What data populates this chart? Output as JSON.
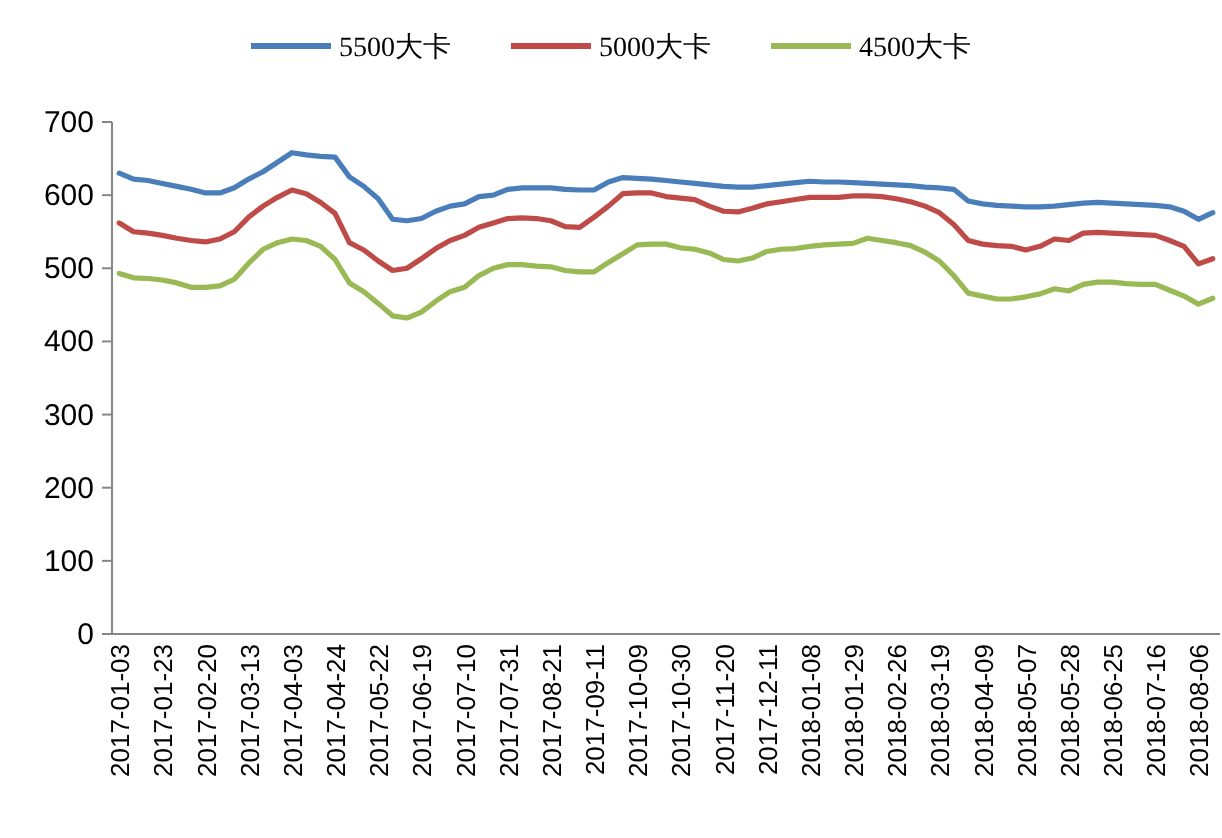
{
  "chart_data": {
    "type": "line",
    "categories": [
      "2017-01-03",
      null,
      null,
      "2017-01-23",
      null,
      null,
      "2017-02-20",
      null,
      null,
      "2017-03-13",
      null,
      null,
      "2017-04-03",
      null,
      null,
      "2017-04-24",
      null,
      null,
      "2017-05-22",
      null,
      null,
      "2017-06-19",
      null,
      null,
      "2017-07-10",
      null,
      null,
      "2017-07-31",
      null,
      null,
      "2017-08-21",
      null,
      null,
      "2017-09-11",
      null,
      null,
      "2017-10-09",
      null,
      null,
      "2017-10-30",
      null,
      null,
      "2017-11-20",
      null,
      null,
      "2017-12-11",
      null,
      null,
      "2018-01-08",
      null,
      null,
      "2018-01-29",
      null,
      null,
      "2018-02-26",
      null,
      null,
      "2018-03-19",
      null,
      null,
      "2018-04-09",
      null,
      null,
      "2018-05-07",
      null,
      null,
      "2018-05-28",
      null,
      null,
      "2018-06-25",
      null,
      null,
      "2018-07-16",
      null,
      null,
      "2018-08-06",
      null
    ],
    "series": [
      {
        "name": "5500大卡",
        "color": "#4a7ebb",
        "values": [
          630,
          622,
          620,
          616,
          612,
          608,
          603,
          603,
          610,
          622,
          632,
          645,
          658,
          655,
          653,
          652,
          625,
          612,
          595,
          567,
          565,
          568,
          578,
          585,
          588,
          598,
          600,
          608,
          610,
          610,
          610,
          608,
          607,
          607,
          618,
          624,
          623,
          622,
          620,
          618,
          616,
          614,
          612,
          611,
          611,
          613,
          615,
          617,
          619,
          618,
          618,
          617,
          616,
          615,
          614,
          613,
          611,
          610,
          608,
          592,
          588,
          586,
          585,
          584,
          584,
          585,
          587,
          589,
          590,
          589,
          588,
          587,
          586,
          584,
          578,
          567,
          576
        ]
      },
      {
        "name": "5000大卡",
        "color": "#be4b48",
        "values": [
          562,
          550,
          548,
          545,
          541,
          538,
          536,
          540,
          550,
          570,
          585,
          597,
          607,
          602,
          590,
          575,
          535,
          525,
          510,
          497,
          500,
          513,
          527,
          538,
          545,
          556,
          562,
          568,
          569,
          568,
          565,
          557,
          556,
          570,
          585,
          602,
          603,
          603,
          598,
          596,
          594,
          585,
          578,
          577,
          582,
          588,
          591,
          594,
          597,
          597,
          597,
          599,
          599,
          598,
          595,
          591,
          585,
          576,
          560,
          538,
          533,
          531,
          530,
          525,
          530,
          540,
          538,
          548,
          549,
          548,
          547,
          546,
          545,
          538,
          530,
          506,
          513
        ]
      },
      {
        "name": "4500大卡",
        "color": "#98b954",
        "values": [
          493,
          487,
          486,
          484,
          480,
          474,
          474,
          476,
          485,
          507,
          526,
          535,
          540,
          538,
          530,
          512,
          480,
          468,
          452,
          435,
          432,
          440,
          455,
          468,
          474,
          490,
          500,
          505,
          505,
          503,
          502,
          497,
          495,
          495,
          508,
          520,
          532,
          533,
          533,
          528,
          526,
          521,
          512,
          510,
          514,
          523,
          526,
          527,
          530,
          532,
          533,
          534,
          541,
          538,
          535,
          531,
          522,
          510,
          490,
          466,
          462,
          458,
          458,
          461,
          465,
          472,
          469,
          478,
          481,
          481,
          479,
          478,
          478,
          470,
          462,
          451,
          459
        ]
      }
    ],
    "ylim": [
      0,
      700
    ],
    "yticks": [
      0,
      100,
      200,
      300,
      400,
      500,
      600,
      700
    ],
    "legend": "top"
  }
}
